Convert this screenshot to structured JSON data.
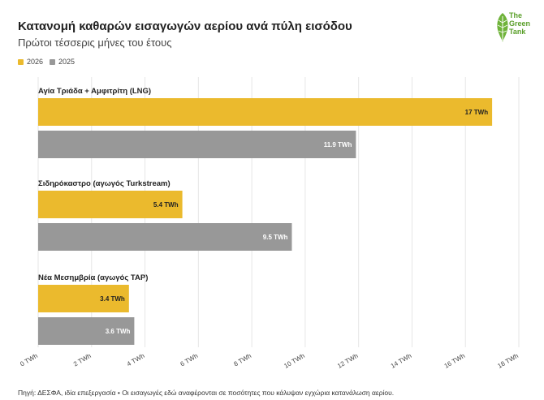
{
  "title": "Κατανομή καθαρών εισαγωγών αερίου ανά πύλη εισόδου",
  "subtitle": "Πρώτοι τέσσερις μήνες του έτους",
  "logo": {
    "line1": "The",
    "line2": "Green",
    "line3": "Tank"
  },
  "footer": "Πηγή: ΔΕΣΦΑ, ιδία επεξεργασία • Οι εισαγωγές εδώ αναφέρονται σε ποσότητες που κάλυψαν εγχώρια κατανάλωση αερίου.",
  "colors": {
    "2026": "#ebba2d",
    "2025": "#989898"
  },
  "chart_data": {
    "type": "bar",
    "orientation": "horizontal",
    "title": "Κατανομή καθαρών εισαγωγών αερίου ανά πύλη εισόδου",
    "subtitle": "Πρώτοι τέσσερις μήνες του έτους",
    "categories": [
      "Αγία Τριάδα + Αμφιτρίτη (LNG)",
      "Σιδηρόκαστρο (αγωγός Turkstream)",
      "Νέα Μεσημβρία (αγωγός TAP)"
    ],
    "series": [
      {
        "name": "2026",
        "values": [
          17,
          5.4,
          3.4
        ],
        "labels": [
          "17 TWh",
          "5.4 TWh",
          "3.4 TWh"
        ]
      },
      {
        "name": "2025",
        "values": [
          11.9,
          9.5,
          3.6
        ],
        "labels": [
          "11.9 TWh",
          "9.5 TWh",
          "3.6 TWh"
        ]
      }
    ],
    "xlim": [
      0,
      18
    ],
    "xticks": [
      "0 TWh",
      "2 TWh",
      "4 TWh",
      "6 TWh",
      "8 TWh",
      "10 TWh",
      "12 TWh",
      "14 TWh",
      "16 TWh",
      "18 TWh"
    ],
    "grid": true,
    "legend": "top-left"
  }
}
